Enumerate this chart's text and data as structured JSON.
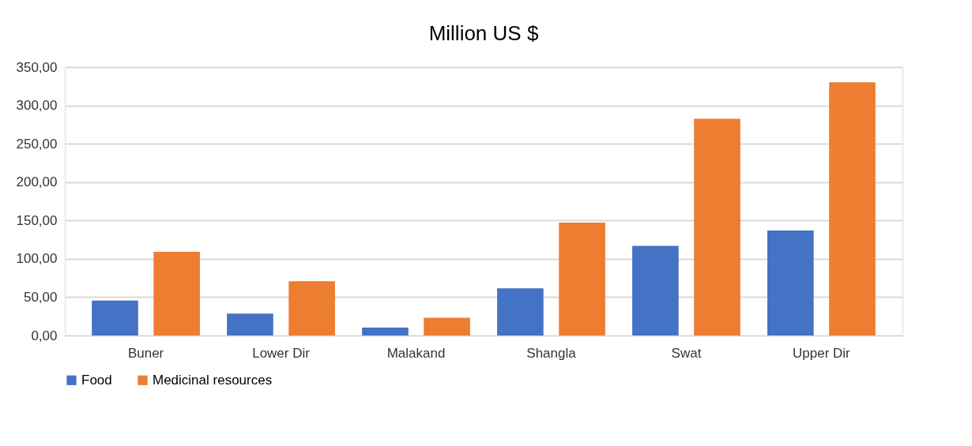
{
  "chart_data": {
    "type": "bar",
    "title": "Million US $",
    "categories": [
      "Buner",
      "Lower Dir",
      "Malakand",
      "Shangla",
      "Swat",
      "Upper Dir"
    ],
    "series": [
      {
        "name": "Food",
        "color": "#4472c4",
        "values": [
          45.6,
          28.5,
          10.2,
          61.5,
          116.8,
          136.8
        ]
      },
      {
        "name": "Medicinal resources",
        "color": "#ed7d31",
        "values": [
          109.1,
          70.8,
          23.2,
          147.3,
          282.5,
          330.1
        ]
      }
    ],
    "ylim": [
      0,
      350
    ],
    "yticks": [
      {
        "value": 0,
        "label": "0,00"
      },
      {
        "value": 50,
        "label": "50,00"
      },
      {
        "value": 100,
        "label": "100,00"
      },
      {
        "value": 150,
        "label": "150,00"
      },
      {
        "value": 200,
        "label": "200,00"
      },
      {
        "value": 250,
        "label": "250,00"
      },
      {
        "value": 300,
        "label": "300,00"
      },
      {
        "value": 350,
        "label": "350,00"
      }
    ],
    "grid": "y",
    "legend": "bottom"
  }
}
